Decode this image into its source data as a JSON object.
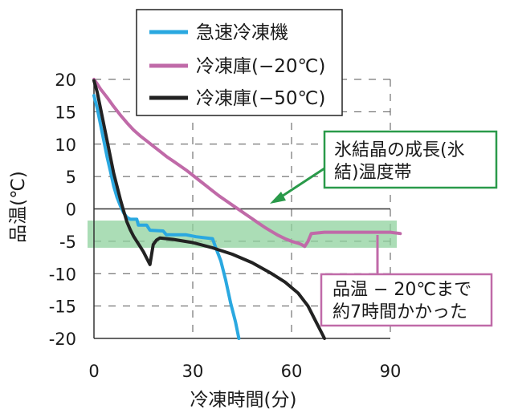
{
  "chart_data": {
    "type": "line",
    "xlabel": "冷凍時間(分)",
    "ylabel": "品温(℃)",
    "xlim": [
      0,
      90
    ],
    "ylim": [
      -20,
      20
    ],
    "x_ticks": [
      "0",
      "30",
      "60",
      "90"
    ],
    "y_ticks": [
      "20",
      "15",
      "10",
      "5",
      "0",
      "-5",
      "-10",
      "-15",
      "-20"
    ],
    "grid": "dashed",
    "legend_position": "top",
    "band": {
      "y_from": -1.8,
      "y_to": -6,
      "color": "#8fd19e"
    },
    "series": [
      {
        "name": "急速冷凍機",
        "color": "#2aa8e0",
        "points": [
          [
            0,
            17.5
          ],
          [
            1,
            15.5
          ],
          [
            2,
            13
          ],
          [
            3,
            10.5
          ],
          [
            4,
            8
          ],
          [
            5,
            5.8
          ],
          [
            6,
            3.5
          ],
          [
            7,
            1.8
          ],
          [
            8,
            0.5
          ],
          [
            9,
            -0.6
          ],
          [
            10,
            -1.3
          ],
          [
            11,
            -1.6
          ],
          [
            13,
            -1.6
          ],
          [
            13.5,
            -2.5
          ],
          [
            16,
            -2.5
          ],
          [
            17,
            -3.3
          ],
          [
            21,
            -3.4
          ],
          [
            22,
            -4
          ],
          [
            28,
            -4
          ],
          [
            31,
            -4.3
          ],
          [
            36,
            -4.6
          ],
          [
            37,
            -6
          ],
          [
            38.5,
            -8
          ],
          [
            40,
            -11
          ],
          [
            41.5,
            -14.5
          ],
          [
            43,
            -17.5
          ],
          [
            44,
            -20
          ]
        ]
      },
      {
        "name": "冷凍庫(−20℃)",
        "color": "#c06aa8",
        "points": [
          [
            0,
            20
          ],
          [
            1,
            19.3
          ],
          [
            2,
            18.5
          ],
          [
            4,
            17.2
          ],
          [
            6,
            15.8
          ],
          [
            8,
            14.5
          ],
          [
            10,
            13.3
          ],
          [
            12,
            12.2
          ],
          [
            14,
            11.3
          ],
          [
            16,
            10.5
          ],
          [
            18,
            9.7
          ],
          [
            20,
            8.9
          ],
          [
            22,
            8.1
          ],
          [
            24,
            7.4
          ],
          [
            26,
            6.7
          ],
          [
            28,
            6
          ],
          [
            30,
            5.2
          ],
          [
            32,
            4.4
          ],
          [
            34,
            3.6
          ],
          [
            36,
            2.8
          ],
          [
            38,
            2
          ],
          [
            40,
            1.3
          ],
          [
            42,
            0.6
          ],
          [
            44,
            -0.1
          ],
          [
            46,
            -0.8
          ],
          [
            48,
            -1.5
          ],
          [
            50,
            -2.2
          ],
          [
            52,
            -2.9
          ],
          [
            54,
            -3.5
          ],
          [
            56,
            -4.1
          ],
          [
            58,
            -4.6
          ],
          [
            60,
            -5
          ],
          [
            62,
            -5.3
          ],
          [
            63,
            -5.5
          ],
          [
            64,
            -5.8
          ],
          [
            65,
            -5
          ],
          [
            66,
            -3.8
          ],
          [
            70,
            -3.6
          ],
          [
            80,
            -3.6
          ],
          [
            90,
            -3.6
          ],
          [
            93,
            -3.8
          ]
        ]
      },
      {
        "name": "冷凍庫(−50℃)",
        "color": "#222222",
        "points": [
          [
            0,
            19.8
          ],
          [
            1,
            18
          ],
          [
            2,
            15.5
          ],
          [
            3,
            13
          ],
          [
            4,
            10.5
          ],
          [
            5,
            8
          ],
          [
            6,
            5.5
          ],
          [
            7,
            3.5
          ],
          [
            8,
            1.5
          ],
          [
            9,
            -0.3
          ],
          [
            10,
            -2
          ],
          [
            11,
            -3.2
          ],
          [
            12,
            -4.2
          ],
          [
            13,
            -5
          ],
          [
            14,
            -5.8
          ],
          [
            15,
            -6.6
          ],
          [
            16,
            -7.6
          ],
          [
            17,
            -8.6
          ],
          [
            17.5,
            -7
          ],
          [
            18,
            -5.5
          ],
          [
            19,
            -4.8
          ],
          [
            20,
            -4.5
          ],
          [
            24,
            -4.7
          ],
          [
            30,
            -5.2
          ],
          [
            36,
            -6
          ],
          [
            42,
            -7
          ],
          [
            48,
            -8.3
          ],
          [
            54,
            -10
          ],
          [
            58,
            -11.3
          ],
          [
            62,
            -13
          ],
          [
            65,
            -15
          ],
          [
            67,
            -17
          ],
          [
            69,
            -19
          ],
          [
            70,
            -20
          ]
        ]
      }
    ],
    "annotations": [
      {
        "lines": [
          "氷結晶の成長(氷",
          "結)温度帯"
        ],
        "border": "#2a9a4a"
      },
      {
        "lines": [
          "品温 − 20℃まで",
          "約7時間かかった"
        ],
        "border": "#c06aa8"
      }
    ]
  }
}
